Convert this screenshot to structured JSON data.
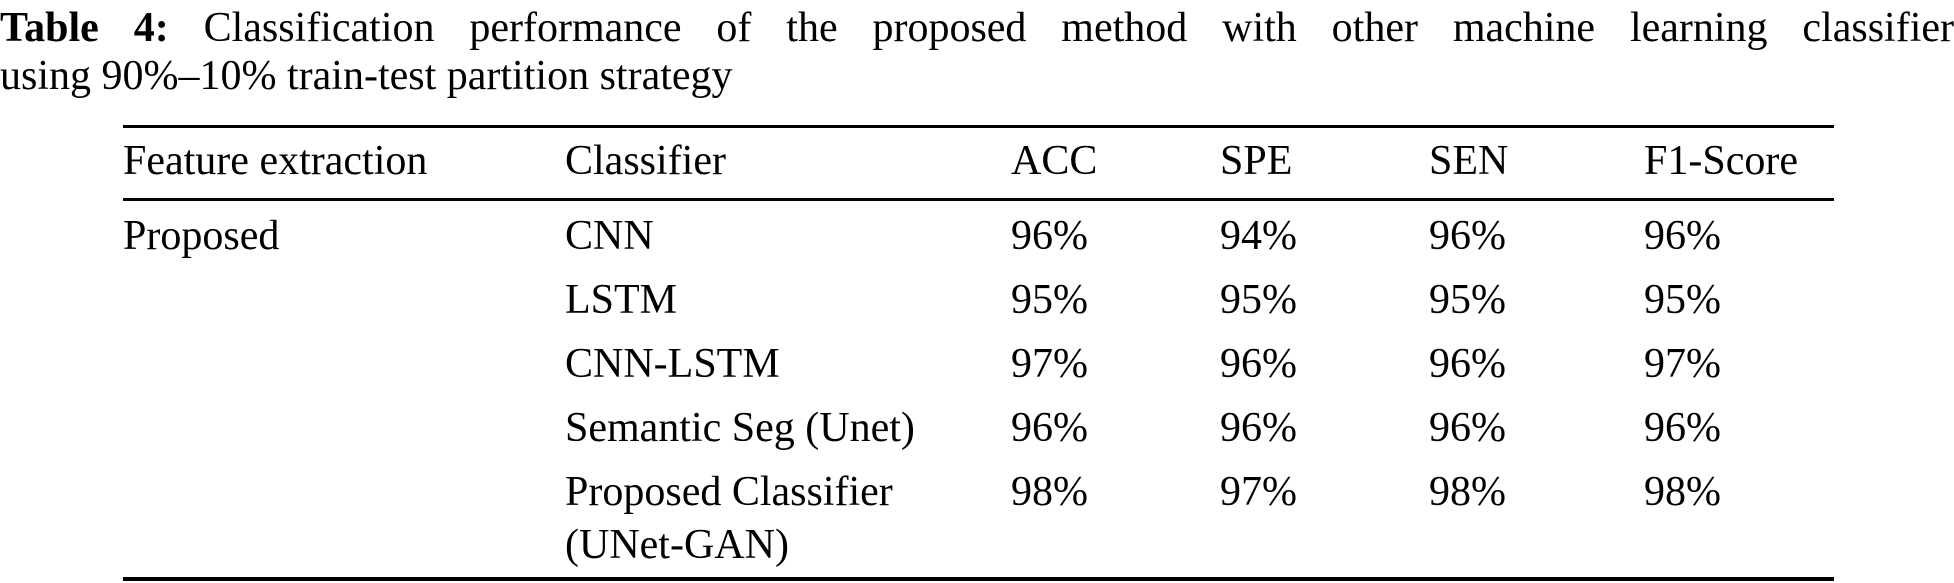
{
  "caption": {
    "label": "Table 4:",
    "line1_rest": "Classification performance of the proposed method with other machine learning classifier",
    "line2": "using 90%–10% train-test partition strategy"
  },
  "table": {
    "headers": [
      "Feature extraction",
      "Classifier",
      "ACC",
      "SPE",
      "SEN",
      "F1-Score"
    ],
    "rows": [
      {
        "feature": "Proposed",
        "classifier": "CNN",
        "acc": "96%",
        "spe": "94%",
        "sen": "96%",
        "f1": "96%"
      },
      {
        "feature": "",
        "classifier": "LSTM",
        "acc": "95%",
        "spe": "95%",
        "sen": "95%",
        "f1": "95%"
      },
      {
        "feature": "",
        "classifier": "CNN-LSTM",
        "acc": "97%",
        "spe": "96%",
        "sen": "96%",
        "f1": "97%"
      },
      {
        "feature": "",
        "classifier": "Semantic Seg (Unet)",
        "acc": "96%",
        "spe": "96%",
        "sen": "96%",
        "f1": "96%"
      },
      {
        "feature": "",
        "classifier": "Proposed Classifier\n(UNet-GAN)",
        "acc": "98%",
        "spe": "97%",
        "sen": "98%",
        "f1": "98%"
      }
    ]
  },
  "colors": {
    "text": "#000000",
    "background": "#ffffff",
    "rule": "#000000"
  },
  "chart_data": {
    "type": "table",
    "title": "Table 4: Classification performance of the proposed method with other machine learning classifier using 90%–10% train-test partition strategy",
    "columns": [
      "Feature extraction",
      "Classifier",
      "ACC",
      "SPE",
      "SEN",
      "F1-Score"
    ],
    "rows": [
      [
        "Proposed",
        "CNN",
        "96%",
        "94%",
        "96%",
        "96%"
      ],
      [
        "",
        "LSTM",
        "95%",
        "95%",
        "95%",
        "95%"
      ],
      [
        "",
        "CNN-LSTM",
        "97%",
        "96%",
        "96%",
        "97%"
      ],
      [
        "",
        "Semantic Seg (Unet)",
        "96%",
        "96%",
        "96%",
        "96%"
      ],
      [
        "",
        "Proposed Classifier (UNet-GAN)",
        "98%",
        "97%",
        "98%",
        "98%"
      ]
    ]
  }
}
